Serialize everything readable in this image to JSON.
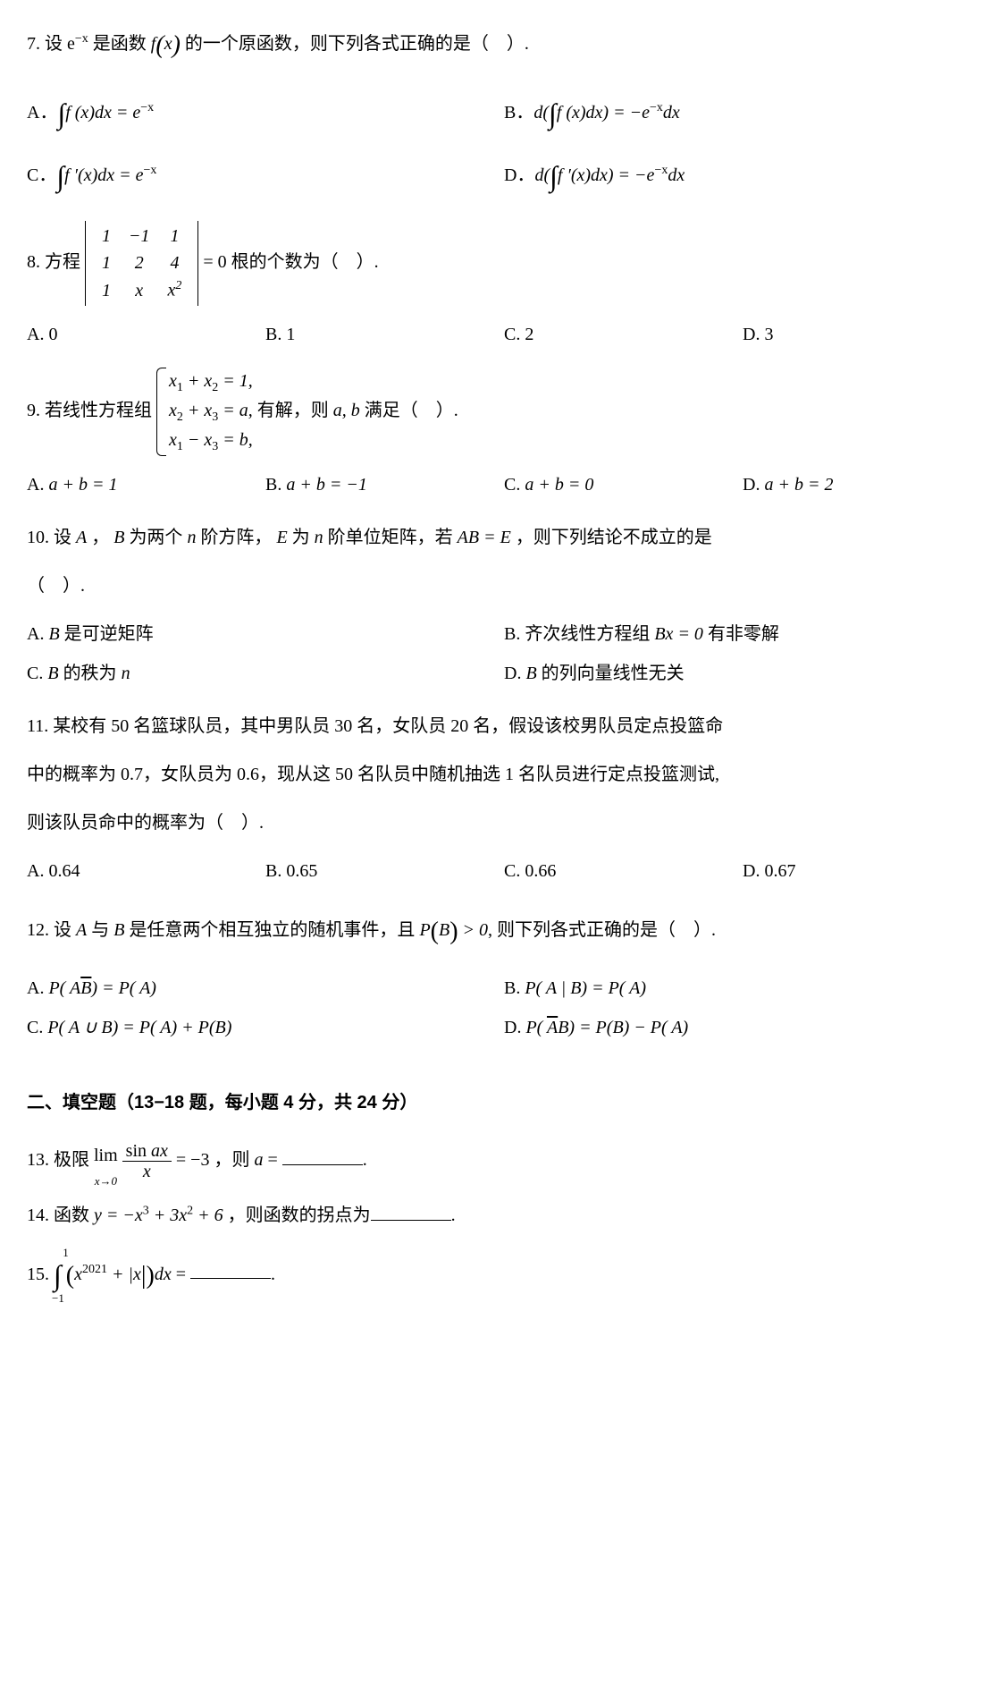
{
  "q7": {
    "stem_pre": "7.  设 e",
    "stem_exp": "−x",
    "stem_mid1": " 是函数 ",
    "stem_f": "f",
    "stem_paren_x": "x",
    "stem_mid2": " 的一个原函数，则下列各式正确的是（ ）.",
    "A_pre": "A．",
    "A_expr_int": "∫",
    "A_expr_f": "f (x)dx = e",
    "A_expr_exp": "−x",
    "B_pre": "B．",
    "B_d": "d(",
    "B_int": "∫",
    "B_fx": "f (x)dx) = −e",
    "B_exp": "−x",
    "B_dx": "dx",
    "C_pre": "C．",
    "C_int": "∫",
    "C_fx": "f ′(x)dx = e",
    "C_exp": "−x",
    "D_pre": "D．",
    "D_d": "d(",
    "D_int": "∫",
    "D_fx": "f ′(x)dx) = −e",
    "D_exp": "−x",
    "D_dx": "dx"
  },
  "q8": {
    "stem_pre": "8.  方程 ",
    "det": {
      "r1": [
        "1",
        "−1",
        "1"
      ],
      "r2": [
        "1",
        "2",
        "4"
      ],
      "r3c1": "1",
      "r3c2": "x",
      "r3c3_base": "x",
      "r3c3_exp": "2"
    },
    "stem_post": " = 0 根的个数为（ ）.",
    "A": "A. 0",
    "B": "B. 1",
    "C": "C. 2",
    "D": "D. 3"
  },
  "q9": {
    "stem_pre": "9.  若线性方程组 ",
    "l1_a": "x",
    "l1_s1": "1",
    "l1_b": " + x",
    "l1_s2": "2",
    "l1_c": " = 1,",
    "l2_a": "x",
    "l2_s1": "2",
    "l2_b": " + x",
    "l2_s2": "3",
    "l2_c": " = a,",
    "l3_a": "x",
    "l3_s1": "1",
    "l3_b": " − x",
    "l3_s2": "3",
    "l3_c": " = b,",
    "stem_mid": " 有解，则 ",
    "ab": "a, b",
    "stem_post": " 满足（ ）.",
    "A_pre": "A.  ",
    "A_expr": "a + b = 1",
    "B_pre": "B.  ",
    "B_expr": "a + b = −1",
    "C_pre": "C.  ",
    "C_expr": "a + b = 0",
    "D_pre": "D.  ",
    "D_expr": "a + b = 2"
  },
  "q10": {
    "line1_a": "10.  设 ",
    "A": "A",
    "comma": " ， ",
    "B": "B",
    "line1_b": " 为两个 ",
    "n1": "n",
    "line1_c": " 阶方阵， ",
    "E": "E",
    "line1_d": " 为 ",
    "n2": "n",
    "line1_e": " 阶单位矩阵，若 ",
    "ABeqE": "AB = E",
    "line1_f": " ，则下列结论不成立的是",
    "line2": "（ ）.",
    "optA_pre": "A.  ",
    "optA_B": "B",
    "optA_post": " 是可逆矩阵",
    "optB_pre": "B.  齐次线性方程组 ",
    "optB_expr": "Bx = 0",
    "optB_post": " 有非零解",
    "optC_pre": "C.  ",
    "optC_B": "B",
    "optC_mid": " 的秩为 ",
    "optC_n": "n",
    "optD_pre": "D.  ",
    "optD_B": "B",
    "optD_post": " 的列向量线性无关"
  },
  "q11": {
    "line1": "11.  某校有 50 名篮球队员，其中男队员 30 名，女队员 20 名，假设该校男队员定点投篮命",
    "line2": "中的概率为 0.7，女队员为 0.6，现从这 50 名队员中随机抽选 1 名队员进行定点投篮测试,",
    "line3": "则该队员命中的概率为（ ）.",
    "A": "A. 0.64",
    "B": "B. 0.65",
    "C": "C. 0.66",
    "D": "D. 0.67"
  },
  "q12": {
    "stem_a": "12.  设 ",
    "A": "A",
    "stem_b": " 与 ",
    "B": "B",
    "stem_c": " 是任意两个相互独立的随机事件，且 ",
    "PB_P": "P",
    "PB_lp": "(",
    "PB_B": "B",
    "PB_rp": ")",
    "gt0": " > 0",
    "stem_d": ", 则下列各式正确的是（ ）.",
    "optA_pre": "A.  ",
    "optA": "P( A",
    "optA_Bbar": "B",
    "optA_post": ") = P( A)",
    "optB_pre": "B.  ",
    "optB": "P( A | B) = P( A)",
    "optC_pre": "C.  ",
    "optC": "P( A ∪ B) = P( A) + P(B)",
    "optD_pre": "D.  ",
    "optD_P": "P( ",
    "optD_Abar": "A",
    "optD_mid": "B) = P(B) − P( A)"
  },
  "section2": "二、填空题（13−18 题，每小题 4 分，共 24 分）",
  "q13": {
    "pre": "13.  极限 ",
    "lim": "lim",
    "limsub": "x→0",
    "num_a": "sin ",
    "num_ax": "ax",
    "den": "x",
    "mid": " = −3 ，则 ",
    "a": "a",
    "eq": " = ",
    "period": "."
  },
  "q14": {
    "pre": "14.  函数 ",
    "y": "y = −x",
    "e3": "3",
    "p1": " + 3x",
    "e2": "2",
    "p2": " + 6",
    "post": " ，则函数的拐点为",
    "period": "."
  },
  "q15": {
    "pre": "15.  ",
    "int": "∫",
    "upper": "1",
    "lower": "−1",
    "lp": "(",
    "x": "x",
    "e2021": "2021",
    "plus": " + |",
    "xabs": "x",
    "rp": "|)",
    "dx": "dx",
    "eq": " = ",
    "period": "."
  }
}
